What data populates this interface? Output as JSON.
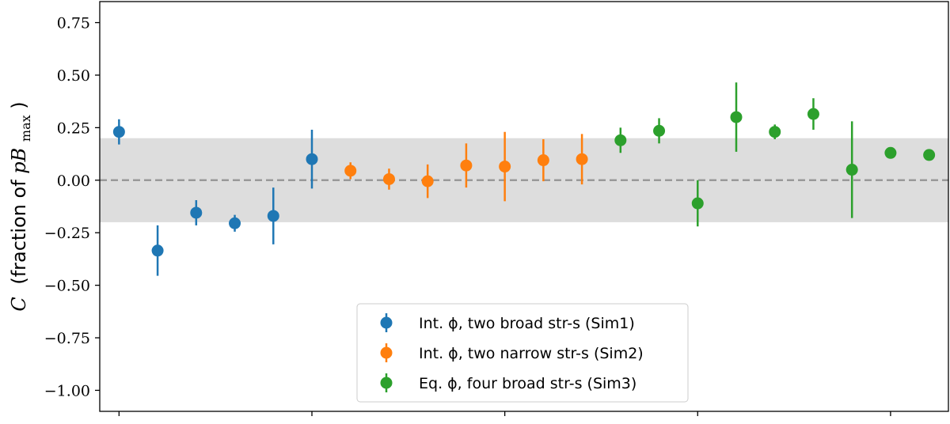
{
  "chart_data": {
    "type": "scatter",
    "ylabel": "C (fraction of pB_max)",
    "ylabel_parts": {
      "symbol": "C",
      "open": "(fraction of ",
      "var": "pB",
      "sub": "max",
      "close": ")"
    },
    "ylim": [
      -1.1,
      0.85
    ],
    "yticks": [
      0.75,
      0.5,
      0.25,
      0.0,
      -0.25,
      -0.5,
      -0.75,
      -1.0
    ],
    "ytick_labels": [
      "0.75",
      "0.50",
      "0.25",
      "0.00",
      "−0.25",
      "−0.50",
      "−0.75",
      "−1.00"
    ],
    "xlim": [
      0.5,
      22.5
    ],
    "xticks": [
      1,
      6,
      11,
      16,
      21
    ],
    "grid": false,
    "reference_line": {
      "y": 0.0,
      "style": "dashed",
      "color": "#999999"
    },
    "shaded_band": {
      "y_min": -0.2,
      "y_max": 0.2,
      "color": "#dddddd"
    },
    "legend_position": "lower-center",
    "series": [
      {
        "name": "Int. ϕ, two broad str-s (Sim1)",
        "color": "#1f77b4",
        "points": [
          {
            "x": 1,
            "y": 0.23,
            "err": 0.06
          },
          {
            "x": 2,
            "y": -0.335,
            "err": 0.12
          },
          {
            "x": 3,
            "y": -0.155,
            "err": 0.06
          },
          {
            "x": 4,
            "y": -0.205,
            "err": 0.04
          },
          {
            "x": 5,
            "y": -0.17,
            "err": 0.135
          },
          {
            "x": 6,
            "y": 0.1,
            "err": 0.14
          }
        ]
      },
      {
        "name": "Int. ϕ, two narrow str-s (Sim2)",
        "color": "#ff7f0e",
        "points": [
          {
            "x": 7,
            "y": 0.045,
            "err": 0.04
          },
          {
            "x": 8,
            "y": 0.005,
            "err": 0.05
          },
          {
            "x": 9,
            "y": -0.005,
            "err": 0.08
          },
          {
            "x": 10,
            "y": 0.07,
            "err": 0.105
          },
          {
            "x": 11,
            "y": 0.065,
            "err": 0.165
          },
          {
            "x": 12,
            "y": 0.095,
            "err": 0.1
          },
          {
            "x": 13,
            "y": 0.1,
            "err": 0.12
          }
        ]
      },
      {
        "name": "Eq. ϕ, four broad str-s (Sim3)",
        "color": "#2ca02c",
        "points": [
          {
            "x": 14,
            "y": 0.19,
            "err": 0.06
          },
          {
            "x": 15,
            "y": 0.235,
            "err": 0.06
          },
          {
            "x": 16,
            "y": -0.11,
            "err": 0.11
          },
          {
            "x": 17,
            "y": 0.3,
            "err": 0.165
          },
          {
            "x": 18,
            "y": 0.23,
            "err": 0.035
          },
          {
            "x": 19,
            "y": 0.315,
            "err": 0.075
          },
          {
            "x": 20,
            "y": 0.05,
            "err": 0.23
          },
          {
            "x": 21,
            "y": 0.13,
            "err": 0.02
          },
          {
            "x": 22,
            "y": 0.12,
            "err": 0.01
          }
        ]
      }
    ]
  }
}
